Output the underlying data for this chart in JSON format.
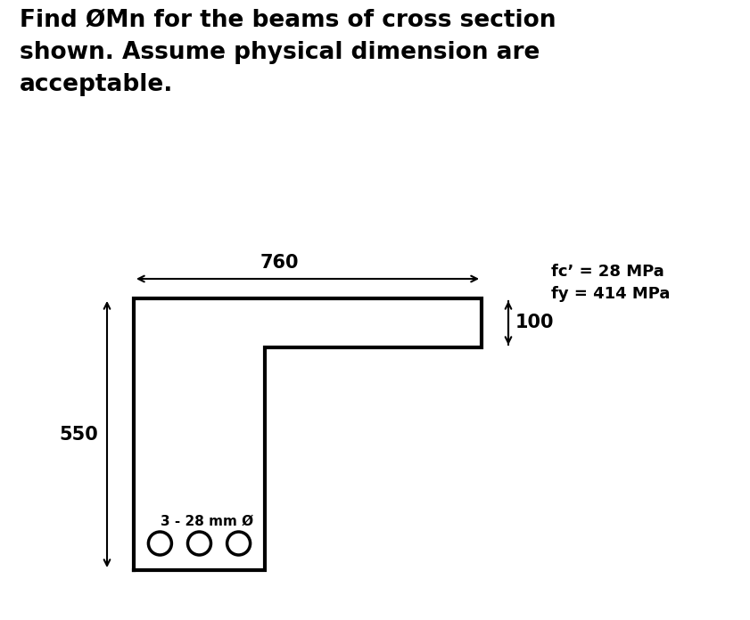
{
  "title_line1": "Find ØMn for the beams of cross section",
  "title_line2": "shown. Assume physical dimension are",
  "title_line3": "acceptable.",
  "fc_label": "fc’ = 28 MPa",
  "fy_label": "fy = 414 MPa",
  "dim_760": "760",
  "dim_550": "550",
  "dim_100": "100",
  "rebar_label": "3 - 28 mm Ø",
  "bg_color": "#ffffff",
  "shape_color": "#000000",
  "lw": 3.0,
  "fig_width": 8.41,
  "fig_height": 6.96,
  "title_fontsize": 19,
  "label_fontsize": 15,
  "dim_fontsize": 15,
  "rebar_fontsize": 11,
  "fc_fontsize": 13
}
